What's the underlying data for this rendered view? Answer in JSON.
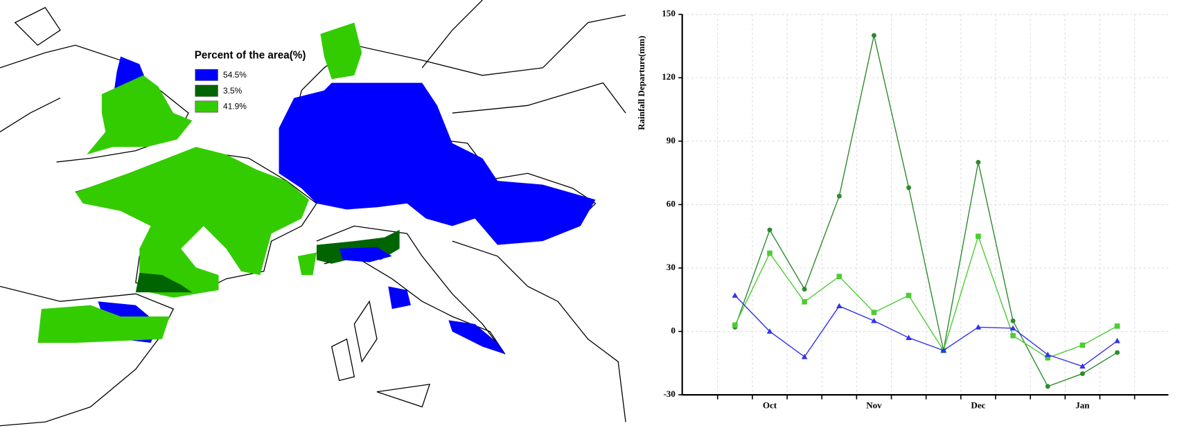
{
  "map": {
    "legend_title": "Percent of the area(%)",
    "legend": [
      {
        "label": "54.5%",
        "color": "#0000ff"
      },
      {
        "label": "3.5%",
        "color": "#006400"
      },
      {
        "label": "41.9%",
        "color": "#33cc00"
      }
    ]
  },
  "chart_data": {
    "type": "line",
    "y_label": "Rainfall Departure(mm)",
    "categories": [
      null,
      "Oct",
      null,
      null,
      "Nov",
      null,
      null,
      "Dec",
      null,
      null,
      "Jan",
      null
    ],
    "series": [
      {
        "color": "#2e8b2e",
        "marker": "circle",
        "values": [
          2,
          48,
          20,
          64,
          140,
          68,
          -9,
          80,
          5,
          -26,
          -20,
          -10
        ]
      },
      {
        "color": "#4ccc33",
        "marker": "square",
        "values": [
          3,
          37,
          14,
          26,
          9,
          17,
          -9,
          45,
          -2,
          -12.5,
          -6.5,
          2.5
        ]
      },
      {
        "color": "#3333ee",
        "marker": "triangle",
        "values": [
          17,
          0,
          -12,
          12,
          5,
          -3,
          -9,
          2,
          1.5,
          -11,
          -16.5,
          -4.5
        ]
      }
    ],
    "ylim": [
      -30,
      150
    ],
    "yticks": [
      -30,
      0,
      30,
      60,
      90,
      120,
      150
    ],
    "grid": true
  }
}
